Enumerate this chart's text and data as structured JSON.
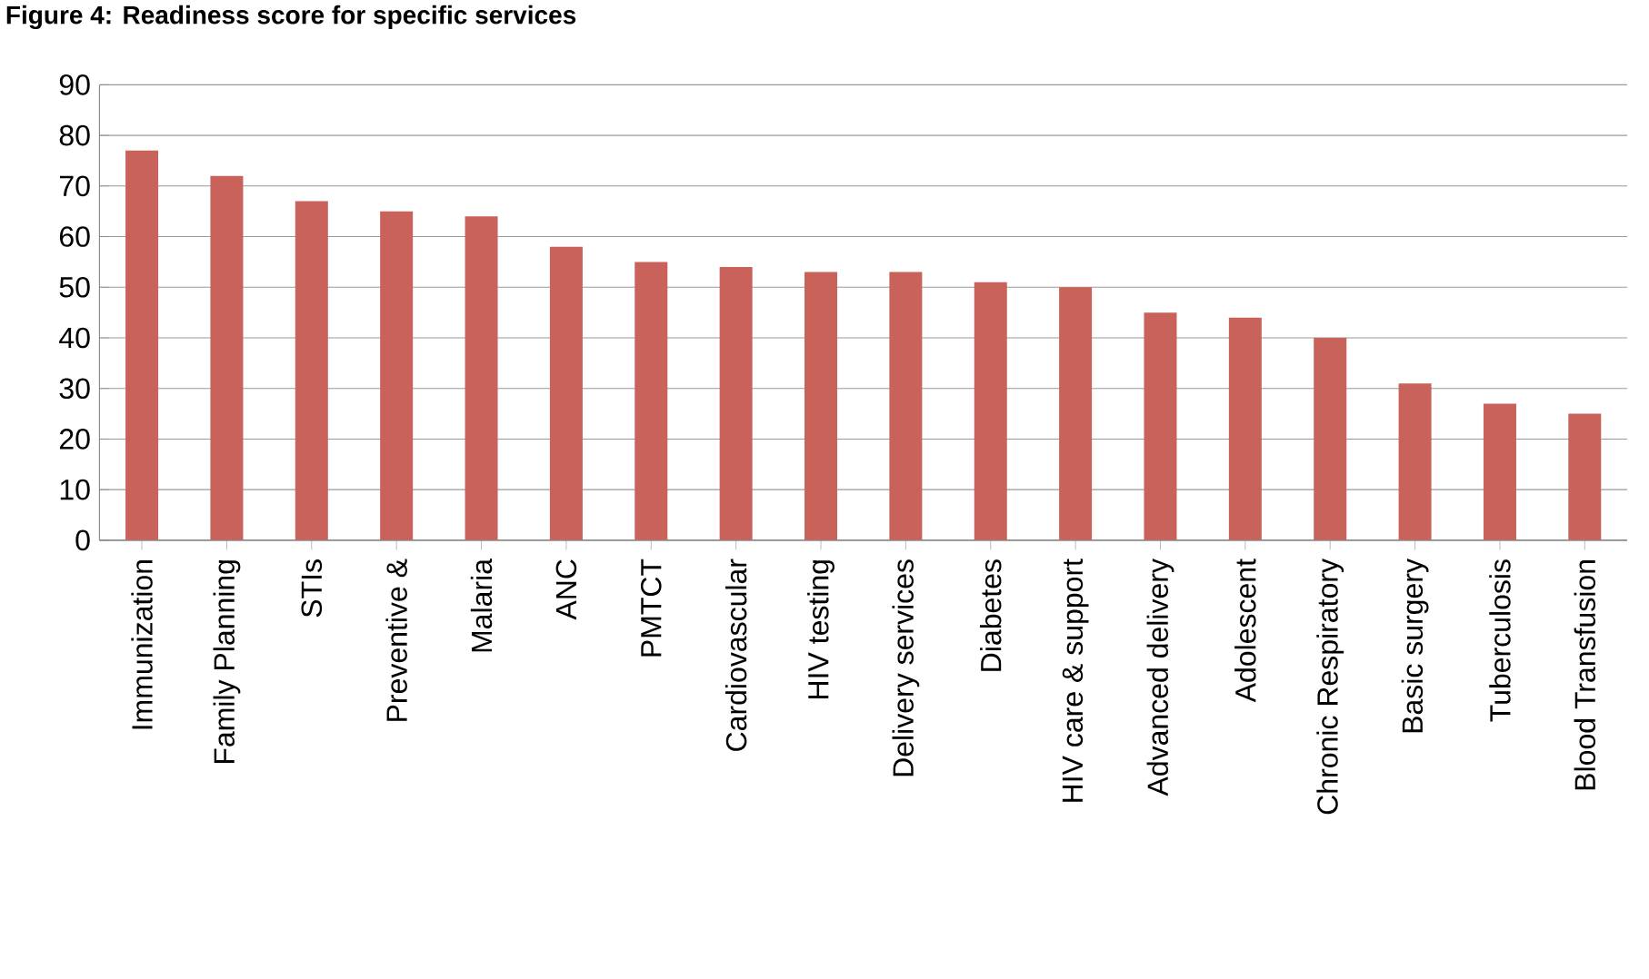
{
  "chart_data": {
    "type": "bar",
    "title": "Figure 4: Readiness score for specific services",
    "categories": [
      "Immunization",
      "Family Planning",
      "STIs",
      "Preventive &",
      "Malaria",
      "ANC",
      "PMTCT",
      "Cardiovascular",
      "HIV testing",
      "Delivery services",
      "Diabetes",
      "HIV care & support",
      "Advanced delivery",
      "Adolescent",
      "Chronic Respiratory",
      "Basic surgery",
      "Tuberculosis",
      "Blood Transfusion"
    ],
    "values": [
      77,
      72,
      67,
      65,
      64,
      58,
      55,
      54,
      53,
      53,
      51,
      50,
      45,
      44,
      40,
      31,
      27,
      25
    ],
    "color": "#c9625a",
    "ylim": [
      0,
      90
    ],
    "yticks": [
      0,
      10,
      20,
      30,
      40,
      50,
      60,
      70,
      80,
      90
    ],
    "grid": "y"
  }
}
